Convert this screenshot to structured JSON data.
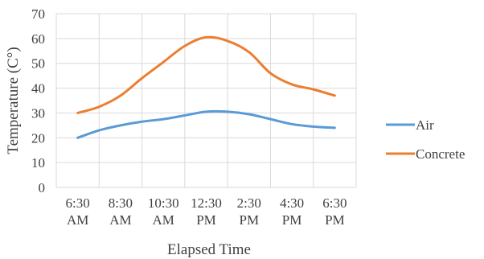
{
  "chart_data": {
    "type": "line",
    "title": "",
    "xlabel": "Elapsed Time",
    "ylabel": "Temperature (C°)",
    "categories": [
      [
        "6:30",
        "AM"
      ],
      [
        "8:30",
        "AM"
      ],
      [
        "10:30",
        "AM"
      ],
      [
        "12:30",
        "PM"
      ],
      [
        "2:30",
        "PM"
      ],
      [
        "4:30",
        "PM"
      ],
      [
        "6:30",
        "PM"
      ]
    ],
    "x": [
      0,
      1,
      2,
      3,
      4,
      5,
      6,
      7,
      8,
      9,
      10,
      11,
      12
    ],
    "x_tick_positions": [
      0,
      2,
      4,
      6,
      8,
      10,
      12
    ],
    "ylim": [
      0,
      70
    ],
    "yticks": [
      0,
      10,
      20,
      30,
      40,
      50,
      60,
      70
    ],
    "grid": true,
    "legend_position": "right",
    "series": [
      {
        "name": "Air",
        "color": "#5b9bd5",
        "values": [
          20,
          23,
          25,
          26.5,
          27.5,
          29,
          30.5,
          30.5,
          29.5,
          27.5,
          25.5,
          24.5,
          24
        ]
      },
      {
        "name": "Concrete",
        "color": "#ed7d31",
        "values": [
          30,
          32.5,
          37,
          44,
          50.5,
          57,
          60.5,
          59,
          54.5,
          46,
          41.5,
          39.5,
          37
        ]
      }
    ]
  }
}
